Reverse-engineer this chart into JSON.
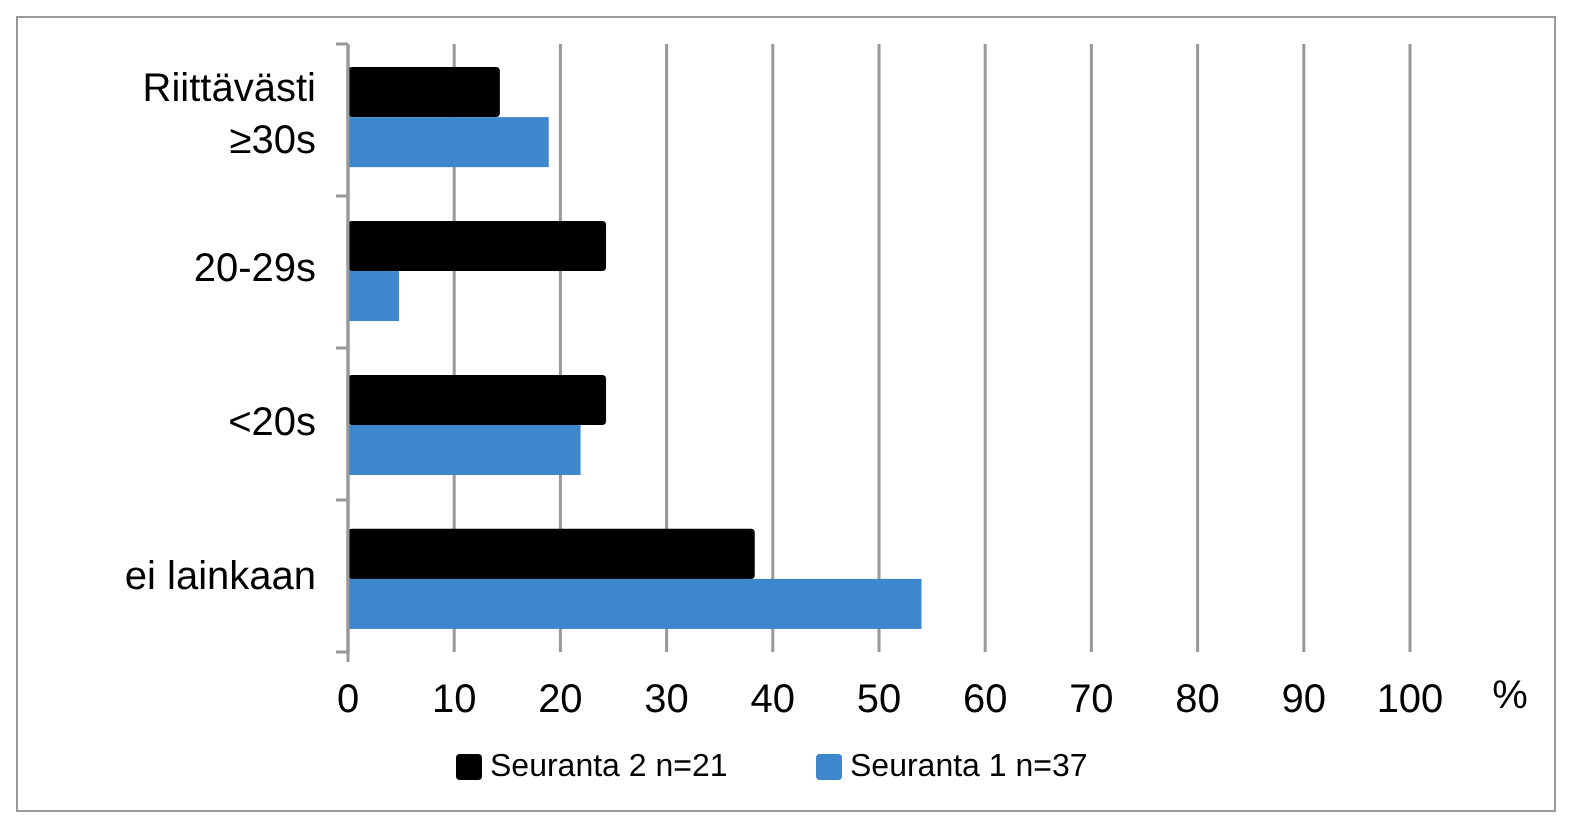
{
  "chart_data": {
    "type": "bar",
    "orientation": "horizontal",
    "categories": [
      "Riittävästi ≥30s",
      "20-29s",
      "<20s",
      "ei lainkaan"
    ],
    "series": [
      {
        "name": "Seuranta 2 n=21",
        "color": "#000000",
        "values": [
          14.3,
          24.3,
          24.3,
          38.3
        ]
      },
      {
        "name": "Seuranta 1 n=37",
        "color": "#3f87cc",
        "values": [
          18.9,
          4.8,
          21.9,
          54
        ]
      }
    ],
    "xlabel": "%",
    "xlim": [
      0,
      100
    ],
    "xticks": [
      0,
      10,
      20,
      30,
      40,
      50,
      60,
      70,
      80,
      90,
      100
    ],
    "grid": "x",
    "legend": "bottom"
  }
}
